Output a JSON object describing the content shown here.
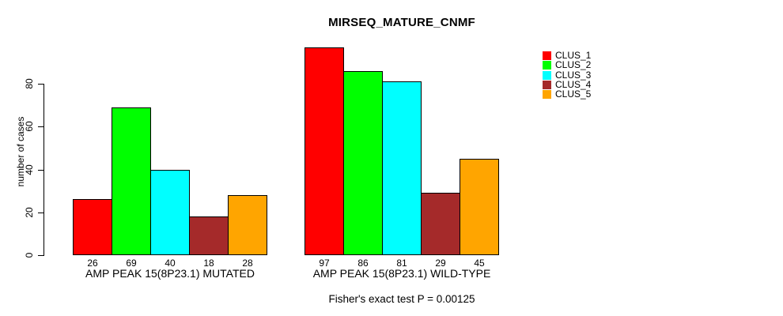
{
  "chart_data": {
    "type": "bar",
    "title": "MIRSEQ_MATURE_CNMF",
    "ylabel": "number of cases",
    "xlabel": "",
    "ylim": [
      0,
      100
    ],
    "yticks": [
      0,
      20,
      40,
      60,
      80
    ],
    "grid": false,
    "legend_position": "right",
    "categories": [
      "CLUS_1",
      "CLUS_2",
      "CLUS_3",
      "CLUS_4",
      "CLUS_5"
    ],
    "colors": [
      "#ff0000",
      "#00ff00",
      "#00ffff",
      "#a52a2a",
      "#ffa500"
    ],
    "groups": [
      {
        "label": "AMP PEAK 15(8P23.1) MUTATED",
        "values": [
          26,
          69,
          40,
          18,
          28
        ]
      },
      {
        "label": "AMP PEAK 15(8P23.1) WILD-TYPE",
        "values": [
          97,
          86,
          81,
          29,
          45
        ]
      }
    ],
    "legend_entries": [
      "CLUS_1",
      "CLUS_2",
      "CLUS_3",
      "CLUS_4",
      "CLUS_5"
    ],
    "footnote": "Fisher's exact test P = 0.00125"
  }
}
